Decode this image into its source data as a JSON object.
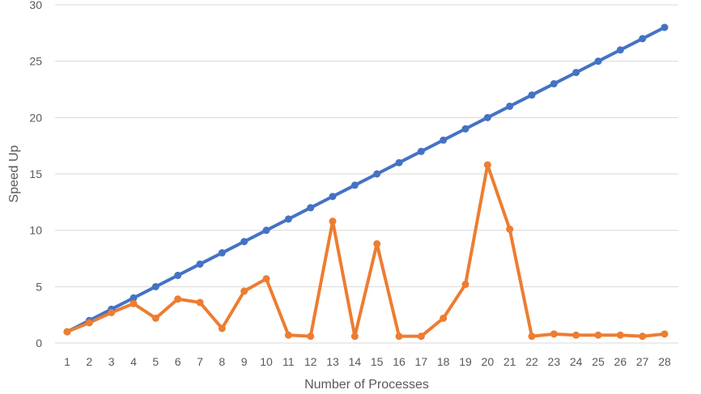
{
  "chart_data": {
    "type": "line",
    "title": "",
    "xlabel": "Number of Processes",
    "ylabel": "Speed Up",
    "x": [
      1,
      2,
      3,
      4,
      5,
      6,
      7,
      8,
      9,
      10,
      11,
      12,
      13,
      14,
      15,
      16,
      17,
      18,
      19,
      20,
      21,
      22,
      23,
      24,
      25,
      26,
      27,
      28
    ],
    "ylim": [
      0,
      30
    ],
    "yticks": [
      0,
      5,
      10,
      15,
      20,
      25,
      30
    ],
    "grid": true,
    "legend": "none",
    "series": [
      {
        "color": "#4472c4",
        "values": [
          1,
          2,
          3,
          4,
          5,
          6,
          7,
          8,
          9,
          10,
          11,
          12,
          13,
          14,
          15,
          16,
          17,
          18,
          19,
          20,
          21,
          22,
          23,
          24,
          25,
          26,
          27,
          28
        ]
      },
      {
        "color": "#ed7d31",
        "values": [
          1.0,
          1.8,
          2.7,
          3.5,
          2.2,
          3.9,
          3.6,
          1.3,
          4.6,
          5.7,
          0.7,
          0.6,
          10.8,
          0.6,
          8.8,
          0.6,
          0.6,
          2.2,
          5.2,
          15.8,
          10.1,
          0.6,
          0.8,
          0.7,
          0.7,
          0.7,
          0.6,
          0.8
        ]
      }
    ]
  }
}
